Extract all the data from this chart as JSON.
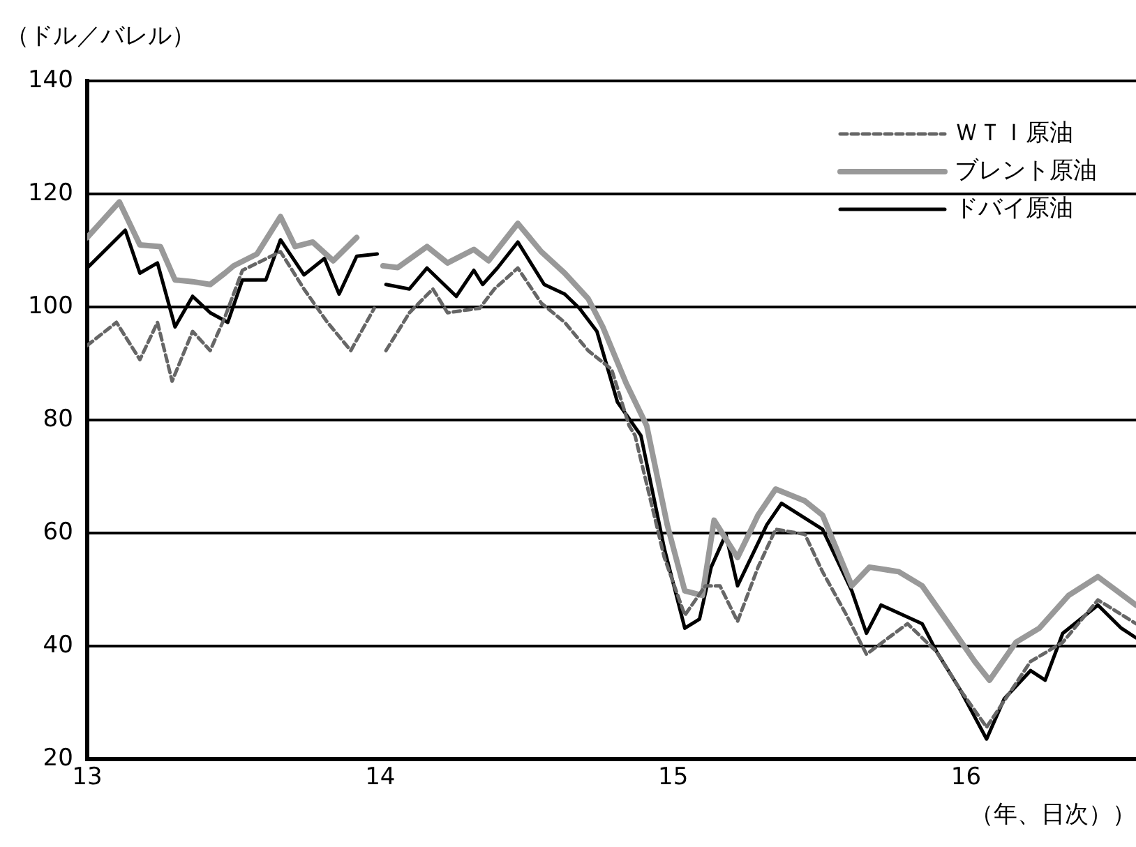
{
  "chart_data": {
    "type": "line",
    "ylabel": "（ドル／バレル）",
    "xlabel": "（年、日次））",
    "xlim": [
      13,
      16.58
    ],
    "xticks": [
      13,
      14,
      15,
      16
    ],
    "ylim": [
      20,
      140
    ],
    "yticks": [
      20,
      40,
      60,
      80,
      100,
      120,
      140
    ],
    "grid": "y",
    "legend": "top right",
    "marker": "none",
    "series": [
      {
        "name": "ＷＴＩ原油",
        "color": "#666666",
        "line_style": "dashed",
        "x": [
          13.0,
          13.1,
          13.18,
          13.24,
          13.29,
          13.36,
          13.42,
          13.47,
          13.53,
          13.66,
          13.74,
          13.82,
          13.9,
          13.98,
          14.0,
          14.02,
          14.1,
          14.18,
          14.23,
          14.34,
          14.39,
          14.47,
          14.55,
          14.63,
          14.71,
          14.79,
          14.85,
          14.87,
          14.97,
          15.04,
          15.11,
          15.16,
          15.22,
          15.29,
          15.35,
          15.45,
          15.51,
          15.59,
          15.66,
          15.8,
          15.9,
          15.98,
          16.07,
          16.22,
          16.33,
          16.45,
          16.58
        ],
        "values": [
          93.2,
          97.3,
          90.7,
          97.3,
          86.9,
          95.7,
          92.3,
          98.2,
          106.5,
          109.8,
          103.2,
          97.3,
          92.3,
          99.8,
          null,
          92.3,
          99,
          103.2,
          99,
          99.8,
          103.2,
          106.9,
          100.7,
          97.3,
          92.3,
          89,
          79,
          77.3,
          55.7,
          45.5,
          50.7,
          50.7,
          44.4,
          54,
          60.7,
          59.8,
          53.2,
          45.7,
          38.6,
          44,
          39,
          32.3,
          25.7,
          37.3,
          40.7,
          48.2,
          44
        ]
      },
      {
        "name": "ブレント原油",
        "color": "#999999",
        "line_style": "solid",
        "x": [
          13.0,
          13.11,
          13.18,
          13.25,
          13.3,
          13.36,
          13.42,
          13.47,
          13.5,
          13.58,
          13.66,
          13.71,
          13.77,
          13.84,
          13.92,
          14.0,
          14.01,
          14.06,
          14.16,
          14.23,
          14.32,
          14.37,
          14.47,
          14.55,
          14.63,
          14.71,
          14.76,
          14.84,
          14.91,
          14.98,
          15.04,
          15.1,
          15.14,
          15.22,
          15.29,
          15.35,
          15.45,
          15.51,
          15.61,
          15.67,
          15.77,
          15.85,
          15.93,
          16.03,
          16.08,
          16.17,
          16.25,
          16.35,
          16.45,
          16.58
        ],
        "values": [
          112.3,
          118.6,
          111,
          110.7,
          104.8,
          104.5,
          104,
          106,
          107.3,
          109.4,
          116,
          110.7,
          111.5,
          108.2,
          112.3,
          null,
          107.3,
          107,
          110.7,
          107.8,
          110.2,
          108.2,
          114.8,
          109.8,
          106,
          101.5,
          96.5,
          86.5,
          79,
          61.5,
          49.8,
          49,
          62.3,
          55.7,
          63.2,
          67.8,
          65.7,
          63.2,
          50.7,
          54,
          53.2,
          50.7,
          44.8,
          37.3,
          34,
          40.7,
          43.2,
          49,
          52.3,
          47.3
        ]
      },
      {
        "name": "ドバイ原油",
        "color": "#000000",
        "line_style": "solid",
        "x": [
          13.0,
          13.13,
          13.18,
          13.24,
          13.3,
          13.36,
          13.42,
          13.48,
          13.53,
          13.61,
          13.66,
          13.74,
          13.81,
          13.86,
          13.92,
          13.99,
          14.0,
          14.02,
          14.1,
          14.16,
          14.26,
          14.32,
          14.35,
          14.4,
          14.47,
          14.56,
          14.63,
          14.68,
          14.74,
          14.81,
          14.89,
          14.9,
          14.97,
          15.04,
          15.09,
          15.13,
          15.18,
          15.22,
          15.32,
          15.37,
          15.51,
          15.61,
          15.66,
          15.71,
          15.85,
          15.9,
          15.98,
          16.07,
          16.13,
          16.22,
          16.27,
          16.33,
          16.45,
          16.53,
          16.58
        ],
        "values": [
          106.9,
          113.6,
          106,
          107.8,
          96.5,
          101.9,
          99,
          97.3,
          104.8,
          104.8,
          111.9,
          105.7,
          108.6,
          102.3,
          109,
          109.4,
          null,
          104,
          103.2,
          106.9,
          101.9,
          106.5,
          104,
          106.9,
          111.5,
          104,
          102.3,
          99.8,
          95.7,
          83.2,
          77.3,
          74.8,
          57.3,
          43.2,
          44.8,
          54,
          59.8,
          50.7,
          61.5,
          65.3,
          60.7,
          49.8,
          42.3,
          47.3,
          44,
          39,
          32.3,
          23.6,
          30.7,
          35.7,
          34,
          42.3,
          47.3,
          43.2,
          41.5
        ]
      }
    ]
  }
}
